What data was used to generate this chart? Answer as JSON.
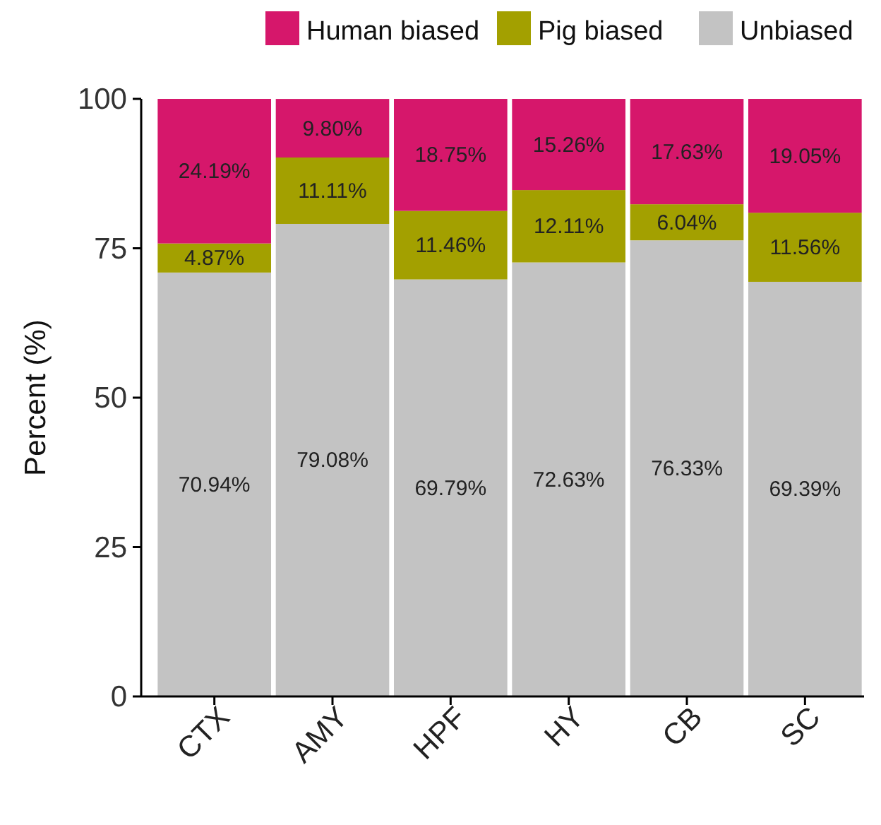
{
  "chart_data": {
    "type": "bar",
    "stacked": true,
    "ylabel": "Percent (%)",
    "categories": [
      "CTX",
      "AMY",
      "HPF",
      "HY",
      "CB",
      "SC"
    ],
    "ylim": [
      0,
      100
    ],
    "yticks": [
      0,
      25,
      50,
      75,
      100
    ],
    "grid": false,
    "legend": "top",
    "series": [
      {
        "name": "Unbiased",
        "color": "#c3c3c3",
        "values": [
          70.94,
          79.08,
          69.79,
          72.63,
          76.33,
          69.39
        ],
        "value_labels": [
          "70.94%",
          "79.08%",
          "69.79%",
          "72.63%",
          "76.33%",
          "69.39%"
        ]
      },
      {
        "name": "Pig biased",
        "color": "#a3a000",
        "values": [
          4.87,
          11.11,
          11.46,
          12.11,
          6.04,
          11.56
        ],
        "value_labels": [
          "4.87%",
          "11.11%",
          "11.46%",
          "12.11%",
          "6.04%",
          "11.56%"
        ]
      },
      {
        "name": "Human biased",
        "color": "#d6176b",
        "values": [
          24.19,
          9.8,
          18.75,
          15.26,
          17.63,
          19.05
        ],
        "value_labels": [
          "24.19%",
          "9.80%",
          "18.75%",
          "15.26%",
          "17.63%",
          "19.05%"
        ]
      }
    ]
  }
}
